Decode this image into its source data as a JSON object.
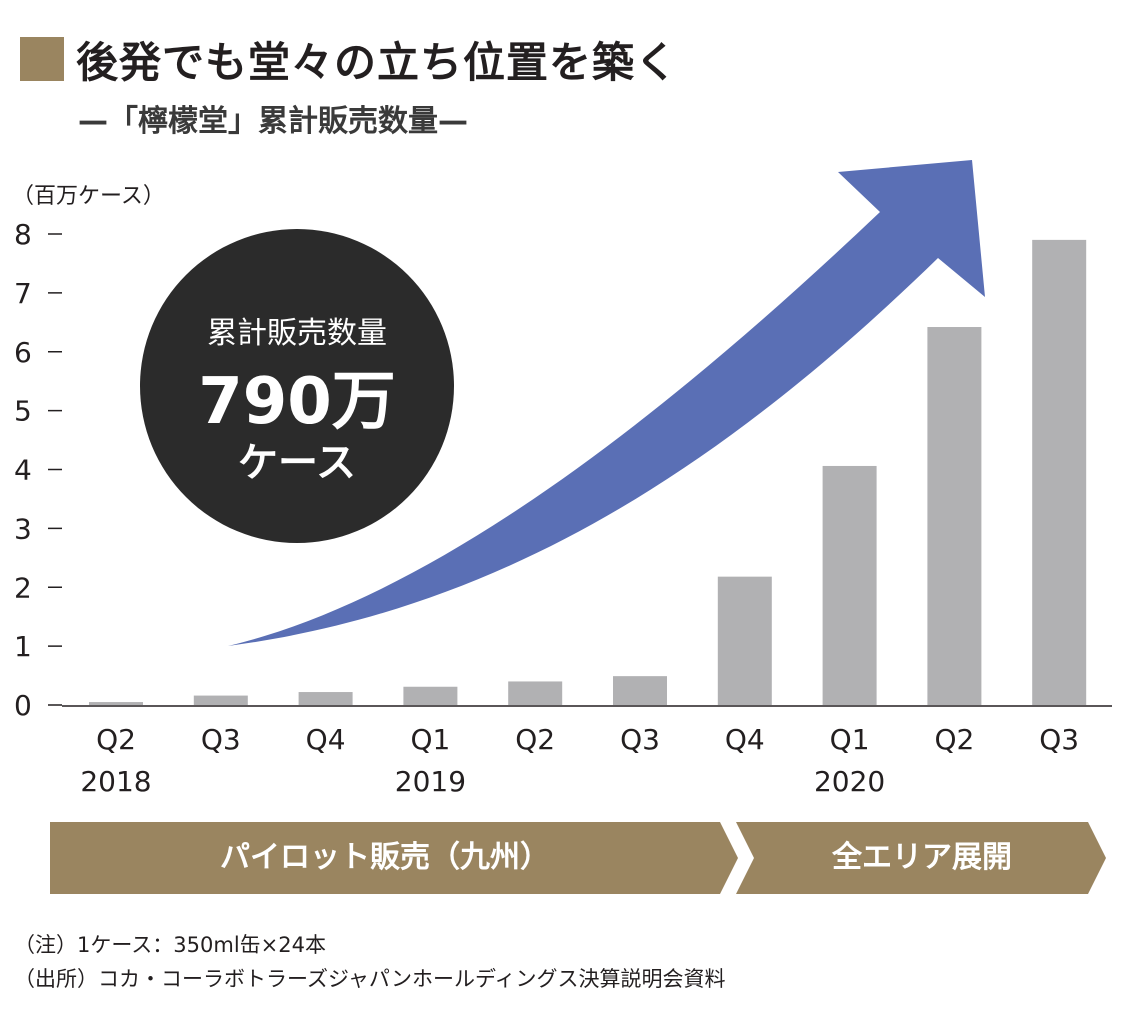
{
  "header": {
    "title": "後発でも堂々の立ち位置を築く",
    "subtitle": "—「檸檬堂」累計販売数量—"
  },
  "chart_data": {
    "type": "bar",
    "unit_label": "（百万ケース）",
    "categories": [
      "Q2",
      "Q3",
      "Q4",
      "Q1",
      "Q2",
      "Q3",
      "Q4",
      "Q1",
      "Q2",
      "Q3"
    ],
    "year_labels": [
      {
        "index": 0,
        "label": "2018"
      },
      {
        "index": 3,
        "label": "2019"
      },
      {
        "index": 7,
        "label": "2020"
      }
    ],
    "values": [
      0.05,
      0.16,
      0.22,
      0.31,
      0.4,
      0.49,
      2.18,
      4.06,
      6.42,
      7.9
    ],
    "ylim": [
      0,
      8
    ],
    "yticks": [
      0,
      1,
      2,
      3,
      4,
      5,
      6,
      7,
      8
    ],
    "bar_color": "#b1b1b3",
    "arrow_color": "#5a6fb5",
    "circle": {
      "line1": "累計販売数量",
      "line2": "790万",
      "line3": "ケース",
      "color": "#2b2b2b"
    }
  },
  "phases": [
    {
      "label": "パイロット販売（九州）",
      "color": "#9a8560"
    },
    {
      "label": "全エリア展開",
      "color": "#9a8560"
    }
  ],
  "notes": [
    "（注）1ケース：350ml缶×24本",
    "（出所）コカ・コーラボトラーズジャパンホールディングス決算説明会資料"
  ]
}
